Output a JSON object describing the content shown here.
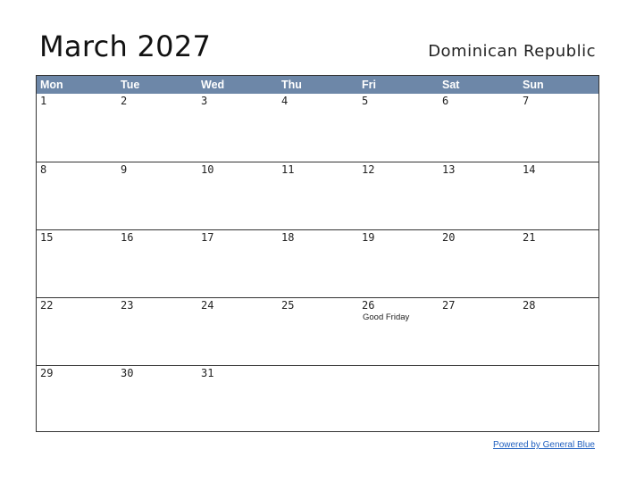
{
  "header": {
    "title": "March 2027",
    "country": "Dominican Republic"
  },
  "calendar": {
    "weekdays": [
      "Mon",
      "Tue",
      "Wed",
      "Thu",
      "Fri",
      "Sat",
      "Sun"
    ],
    "header_color": "#6d87a8",
    "weeks": [
      [
        {
          "day": "1"
        },
        {
          "day": "2"
        },
        {
          "day": "3"
        },
        {
          "day": "4"
        },
        {
          "day": "5"
        },
        {
          "day": "6"
        },
        {
          "day": "7"
        }
      ],
      [
        {
          "day": "8"
        },
        {
          "day": "9"
        },
        {
          "day": "10"
        },
        {
          "day": "11"
        },
        {
          "day": "12"
        },
        {
          "day": "13"
        },
        {
          "day": "14"
        }
      ],
      [
        {
          "day": "15"
        },
        {
          "day": "16"
        },
        {
          "day": "17"
        },
        {
          "day": "18"
        },
        {
          "day": "19"
        },
        {
          "day": "20"
        },
        {
          "day": "21"
        }
      ],
      [
        {
          "day": "22"
        },
        {
          "day": "23"
        },
        {
          "day": "24"
        },
        {
          "day": "25"
        },
        {
          "day": "26",
          "holiday": "Good Friday"
        },
        {
          "day": "27"
        },
        {
          "day": "28"
        }
      ],
      [
        {
          "day": "29"
        },
        {
          "day": "30"
        },
        {
          "day": "31"
        },
        {
          "day": ""
        },
        {
          "day": ""
        },
        {
          "day": ""
        },
        {
          "day": ""
        }
      ]
    ]
  },
  "footer": {
    "credit": "Powered by General Blue"
  }
}
